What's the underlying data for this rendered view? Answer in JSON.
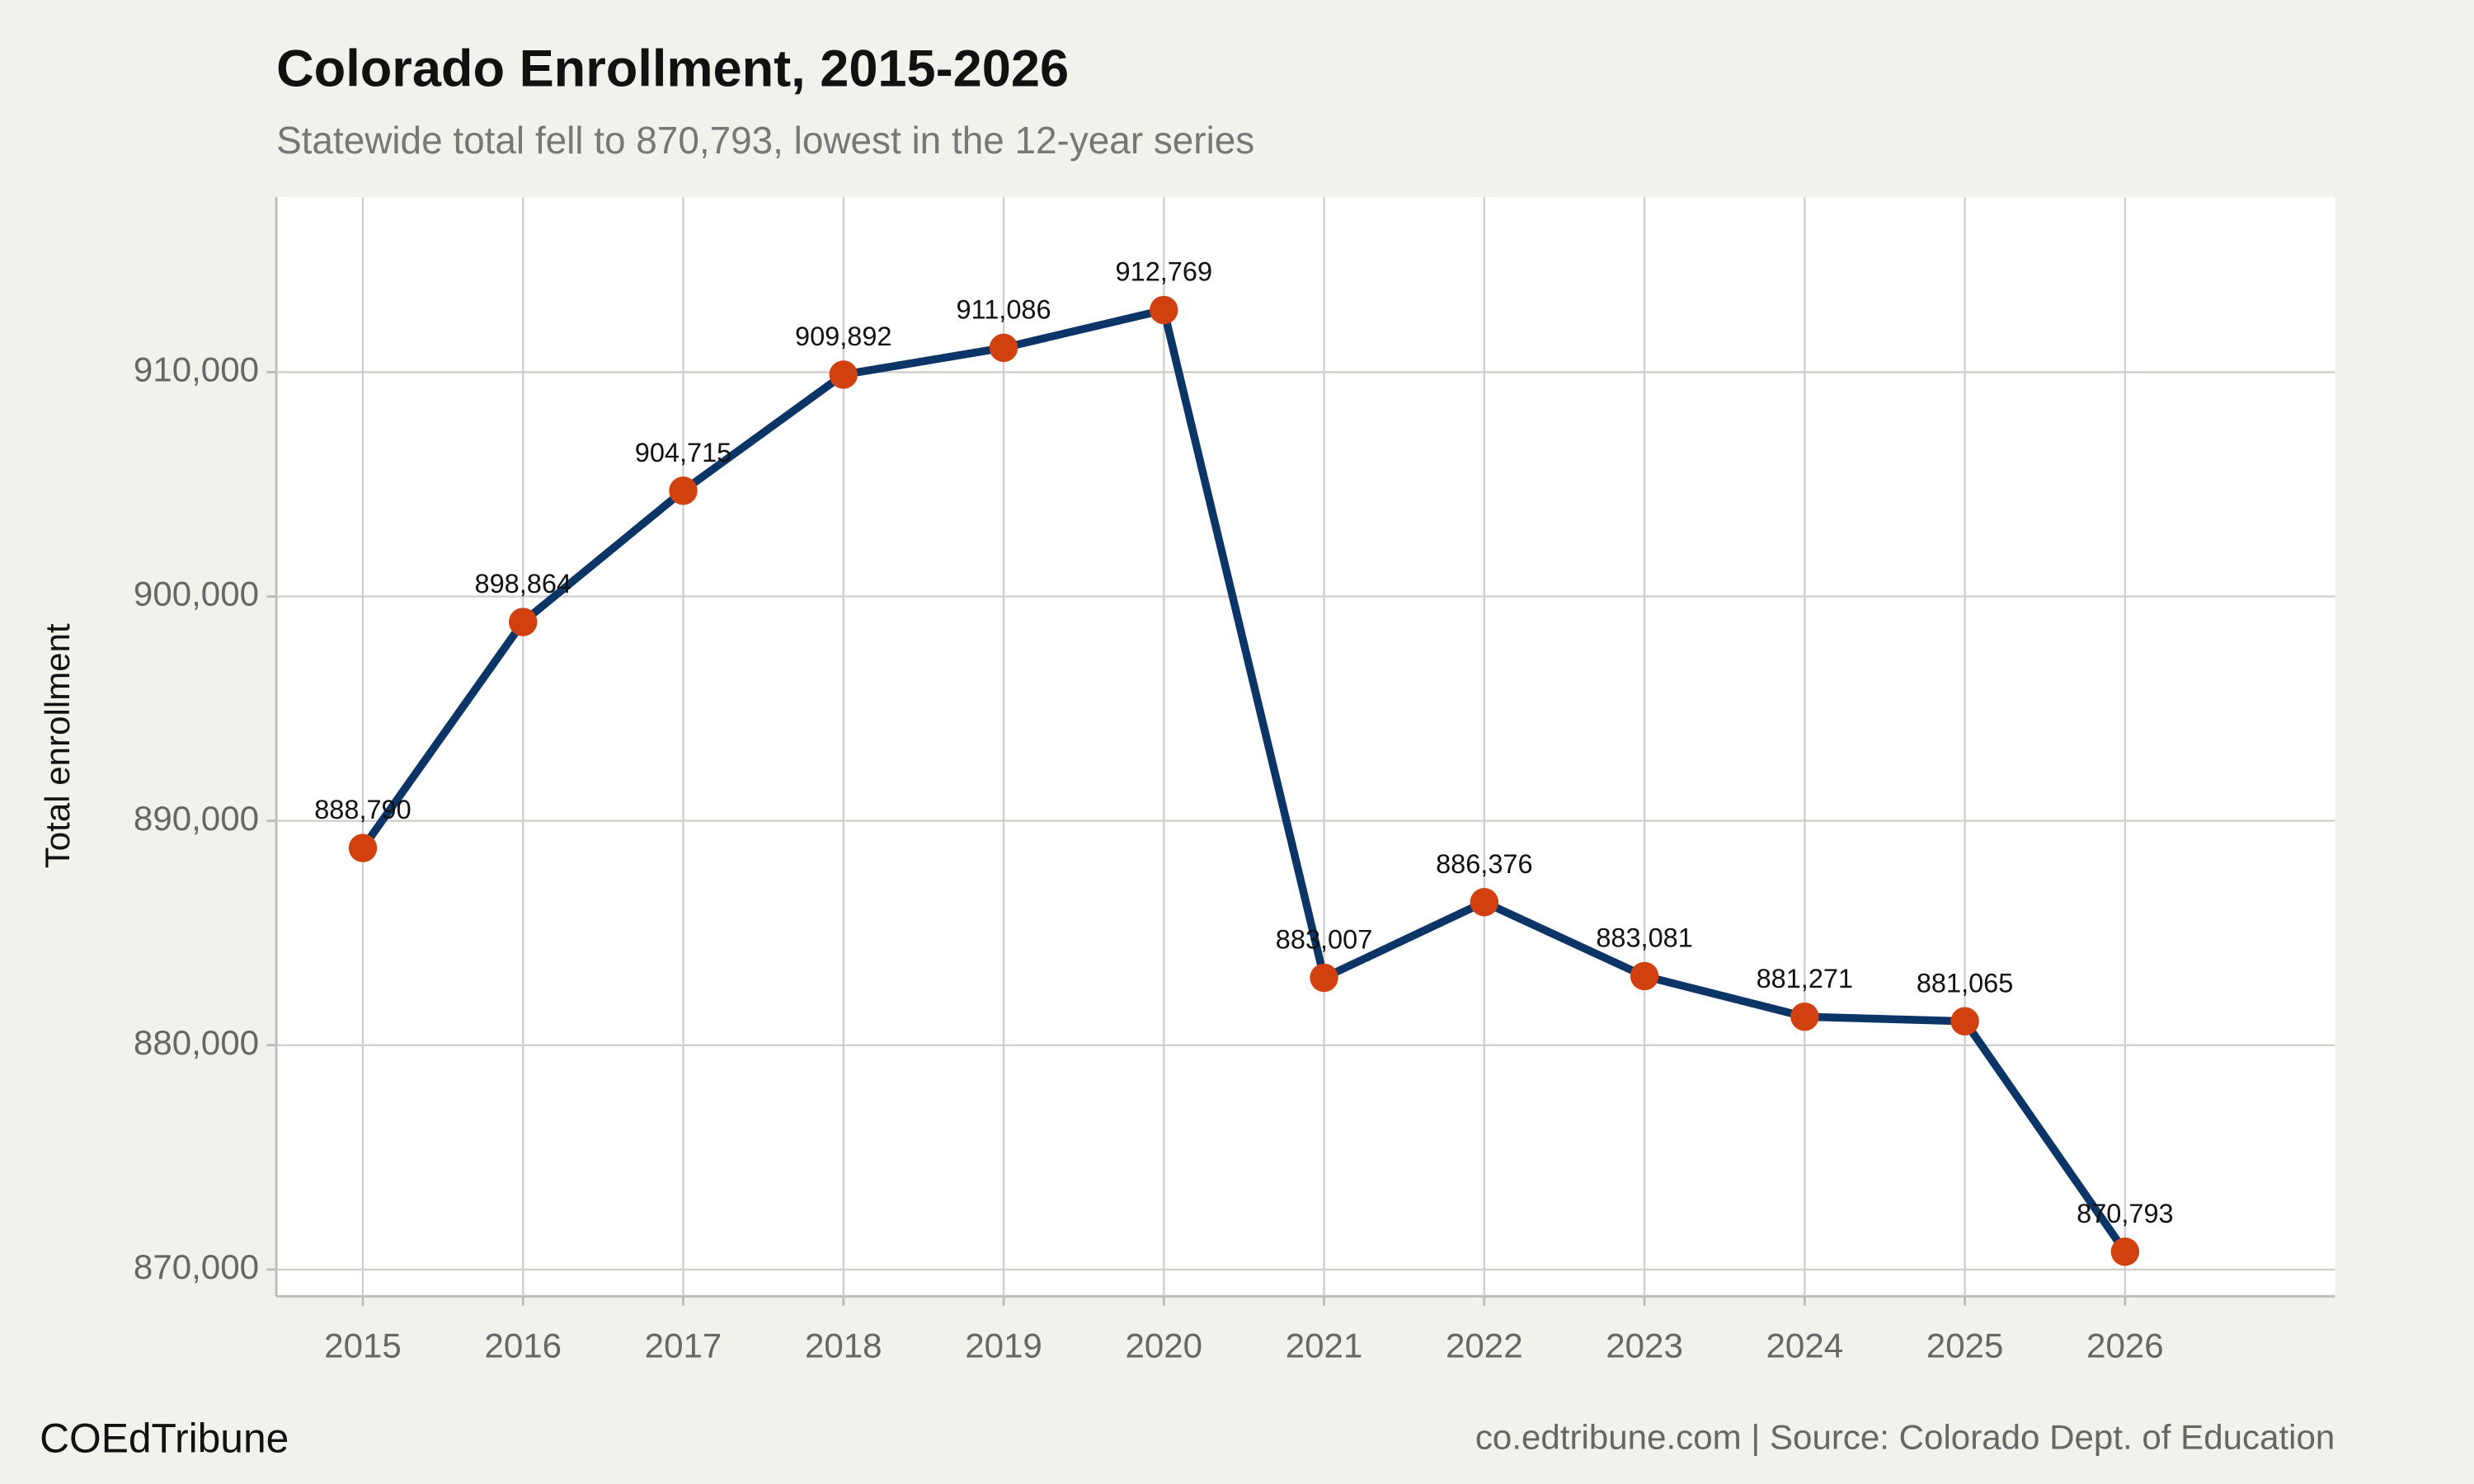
{
  "chart_data": {
    "type": "line",
    "title": "Colorado Enrollment, 2015-2026",
    "subtitle": "Statewide total fell to 870,793, lowest in the 12-year series",
    "ylabel": "Total enrollment",
    "credit": "COEdTribune",
    "source": "co.edtribune.com | Source: Colorado Dept. of Education",
    "x": [
      2015,
      2016,
      2017,
      2018,
      2019,
      2020,
      2021,
      2022,
      2023,
      2024,
      2025,
      2026
    ],
    "values": [
      888790,
      898864,
      904715,
      909892,
      911086,
      912769,
      883007,
      886376,
      883081,
      881271,
      881065,
      870793
    ],
    "value_labels": [
      "888,790",
      "898,864",
      "904,715",
      "909,892",
      "911,086",
      "912,769",
      "883,007",
      "886,376",
      "883,081",
      "881,271",
      "881,065",
      "870,793"
    ],
    "color": "#0b3566",
    "marker_color": "#d1400f",
    "xlim": [
      2014.46,
      2027.31
    ],
    "xticks": [
      2015,
      2016,
      2017,
      2018,
      2019,
      2020,
      2021,
      2022,
      2023,
      2024,
      2025,
      2026
    ],
    "ylim": [
      868805,
      917803
    ],
    "yticks": [
      {
        "value": 870000,
        "label": "870,000"
      },
      {
        "value": 880000,
        "label": "880,000"
      },
      {
        "value": 890000,
        "label": "890,000"
      },
      {
        "value": 900000,
        "label": "900,000"
      },
      {
        "value": 910000,
        "label": "910,000"
      }
    ],
    "grid": true
  }
}
